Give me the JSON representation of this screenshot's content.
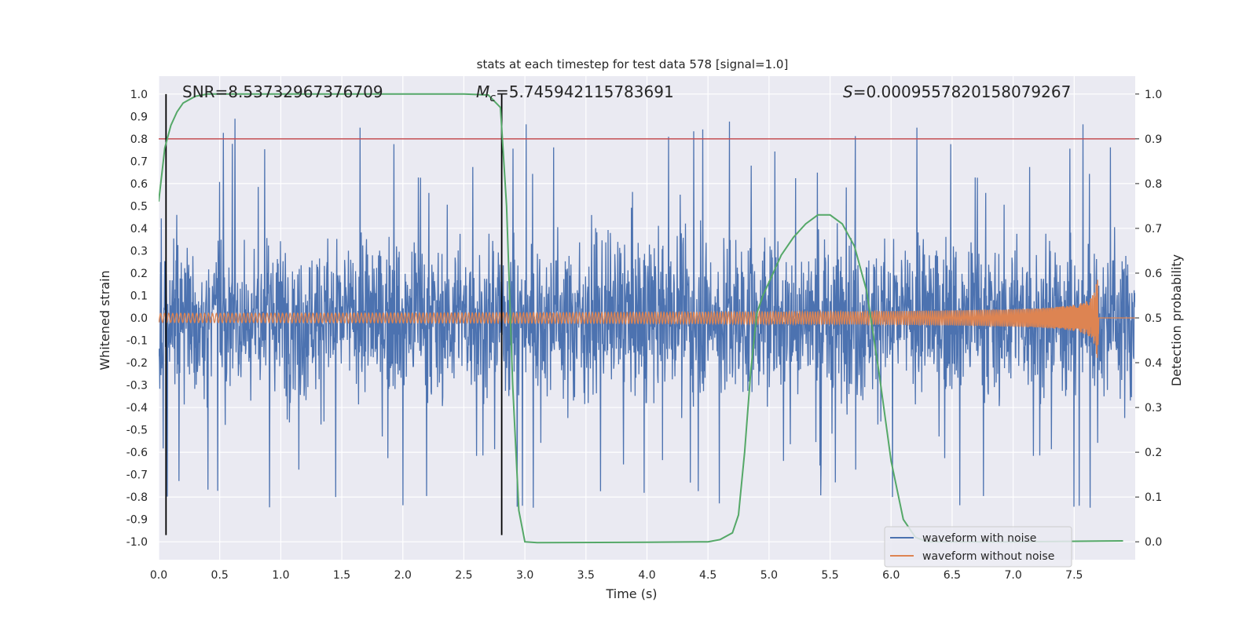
{
  "chart_data": {
    "type": "line",
    "title": "stats at each timestep for test data 578 [signal=1.0]",
    "xlabel": "Time (s)",
    "ylabel_left": "Whitened strain",
    "ylabel_right": "Detection probability",
    "xlim": [
      0.0,
      8.0
    ],
    "ylim_left": [
      -1.08,
      1.08
    ],
    "ylim_right": [
      -0.04,
      1.04
    ],
    "x_ticks": [
      "0.0",
      "0.5",
      "1.0",
      "1.5",
      "2.0",
      "2.5",
      "3.0",
      "3.5",
      "4.0",
      "4.5",
      "5.0",
      "5.5",
      "6.0",
      "6.5",
      "7.0",
      "7.5"
    ],
    "y_ticks_left": [
      "-1.0",
      "-0.9",
      "-0.8",
      "-0.7",
      "-0.6",
      "-0.5",
      "-0.4",
      "-0.3",
      "-0.2",
      "-0.1",
      "0.0",
      "0.1",
      "0.2",
      "0.3",
      "0.4",
      "0.5",
      "0.6",
      "0.7",
      "0.8",
      "0.9",
      "1.0"
    ],
    "y_ticks_right": [
      "0.0",
      "0.1",
      "0.2",
      "0.3",
      "0.4",
      "0.5",
      "0.6",
      "0.7",
      "0.8",
      "0.9",
      "1.0"
    ],
    "grid": true,
    "legend_position": "lower-right",
    "annotations": {
      "snr": "SNR=8.53732967376709",
      "mc_symbol": "M",
      "mc_sub": "c",
      "mc_value": "=5.745942115783691",
      "s_symbol": "S",
      "s_value": "=0.0009557820158079267"
    },
    "threshold_line": {
      "y": 0.8,
      "color": "#c44e52"
    },
    "vertical_markers": [
      0.06,
      2.81
    ],
    "series": [
      {
        "name": "waveform with noise",
        "color": "#4c72b0",
        "noise_envelope": {
          "typical_amplitude": 0.45,
          "peak_max": 1.0,
          "trough_min": -0.97,
          "t_start": 0.0,
          "t_end": 8.0
        }
      },
      {
        "name": "waveform without noise",
        "color": "#dd8452",
        "chirp": {
          "t_start": 0.0,
          "t_merger": 7.7,
          "amplitude_start": 0.02,
          "amplitude_peak": 0.23
        }
      },
      {
        "name": "detection probability",
        "color": "#55a868",
        "axis": "right",
        "x": [
          0.0,
          0.05,
          0.1,
          0.15,
          0.2,
          0.3,
          0.4,
          0.5,
          1.0,
          1.5,
          2.0,
          2.5,
          2.7,
          2.8,
          2.85,
          2.9,
          2.95,
          3.0,
          3.1,
          4.0,
          4.5,
          4.6,
          4.7,
          4.75,
          4.8,
          4.85,
          4.9,
          4.95,
          5.0,
          5.1,
          5.2,
          5.3,
          5.4,
          5.5,
          5.6,
          5.7,
          5.8,
          5.9,
          6.0,
          6.1,
          6.2,
          6.3,
          7.0,
          7.9
        ],
        "y": [
          0.76,
          0.88,
          0.93,
          0.96,
          0.98,
          0.995,
          1.0,
          1.0,
          1.0,
          1.0,
          1.0,
          1.0,
          0.998,
          0.97,
          0.75,
          0.35,
          0.07,
          0.0,
          -0.002,
          -0.001,
          0.0,
          0.005,
          0.02,
          0.06,
          0.2,
          0.38,
          0.51,
          0.55,
          0.58,
          0.64,
          0.68,
          0.71,
          0.73,
          0.73,
          0.71,
          0.66,
          0.56,
          0.38,
          0.18,
          0.05,
          0.01,
          0.0,
          0.0,
          0.002
        ]
      }
    ]
  }
}
